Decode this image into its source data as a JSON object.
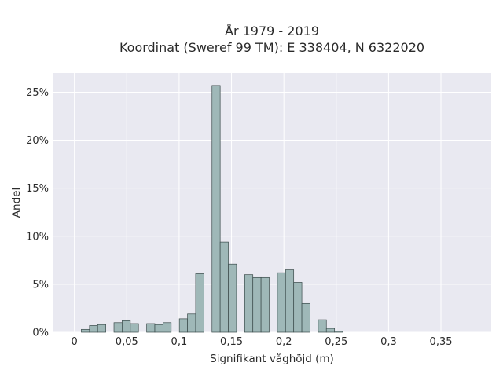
{
  "chart_data": {
    "type": "bar",
    "title_line1": "År 1979 - 2019",
    "title_line2": "Koordinat (Sweref 99 TM): E 338404, N 6322020",
    "xlabel": "Signifikant våghöjd (m)",
    "ylabel": "Andel",
    "xlim": [
      -0.02,
      0.398
    ],
    "ylim": [
      0,
      0.27
    ],
    "x_ticks": [
      0,
      0.05,
      0.1,
      0.15,
      0.2,
      0.25,
      0.3,
      0.35
    ],
    "x_tick_labels": [
      "0",
      "0,05",
      "0,1",
      "0,15",
      "0,2",
      "0,25",
      "0,3",
      "0,35"
    ],
    "y_ticks": [
      0,
      0.05,
      0.1,
      0.15,
      0.2,
      0.25
    ],
    "y_tick_labels": [
      "0%",
      "5%",
      "10%",
      "15%",
      "20%",
      "25%"
    ],
    "grid": true,
    "bar_color": "#9fb8b8",
    "bar_edge_color": "#3a4a4a",
    "background_color": "#e9e9f1",
    "bin_width": 0.0078,
    "bins": [
      {
        "x": 0.0105,
        "value": 0.003
      },
      {
        "x": 0.0183,
        "value": 0.007
      },
      {
        "x": 0.0261,
        "value": 0.008
      },
      {
        "x": 0.0417,
        "value": 0.01
      },
      {
        "x": 0.0495,
        "value": 0.012
      },
      {
        "x": 0.0573,
        "value": 0.009
      },
      {
        "x": 0.0729,
        "value": 0.009
      },
      {
        "x": 0.0807,
        "value": 0.008
      },
      {
        "x": 0.0885,
        "value": 0.01
      },
      {
        "x": 0.1041,
        "value": 0.014
      },
      {
        "x": 0.1119,
        "value": 0.019
      },
      {
        "x": 0.1197,
        "value": 0.061
      },
      {
        "x": 0.1353,
        "value": 0.257
      },
      {
        "x": 0.1431,
        "value": 0.094
      },
      {
        "x": 0.1509,
        "value": 0.071
      },
      {
        "x": 0.1665,
        "value": 0.06
      },
      {
        "x": 0.1743,
        "value": 0.057
      },
      {
        "x": 0.1821,
        "value": 0.057
      },
      {
        "x": 0.1977,
        "value": 0.062
      },
      {
        "x": 0.2055,
        "value": 0.065
      },
      {
        "x": 0.2133,
        "value": 0.052
      },
      {
        "x": 0.2211,
        "value": 0.03
      },
      {
        "x": 0.2367,
        "value": 0.013
      },
      {
        "x": 0.2445,
        "value": 0.004
      },
      {
        "x": 0.2523,
        "value": 0.001
      }
    ]
  }
}
